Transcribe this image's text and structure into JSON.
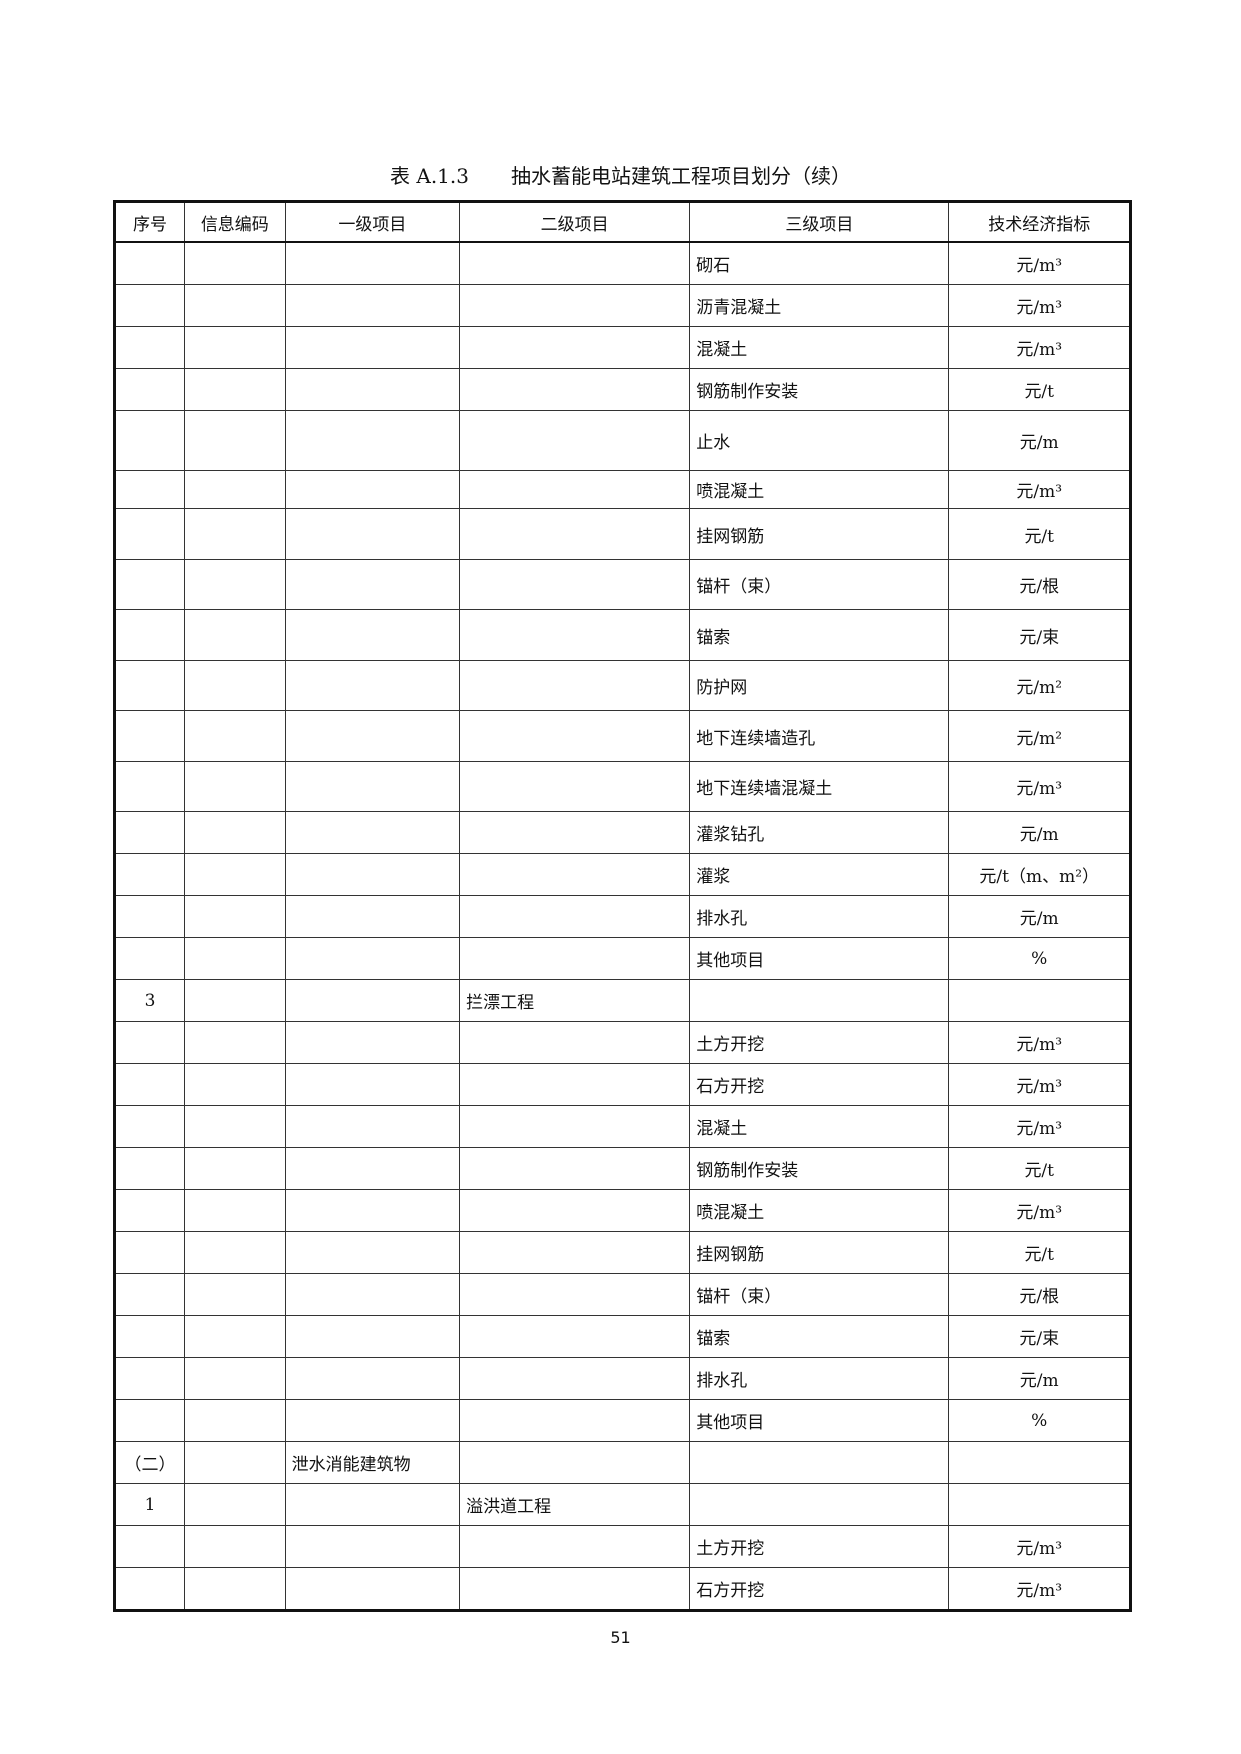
{
  "title": {
    "number": "表 A.1.3",
    "text": "抽水蓄能电站建筑工程项目划分（续）"
  },
  "columns": [
    "序号",
    "信息编码",
    "一级项目",
    "二级项目",
    "三级项目",
    "技术经济指标"
  ],
  "rows": [
    [
      "",
      "",
      "",
      "",
      "砌石",
      "元/m³"
    ],
    [
      "",
      "",
      "",
      "",
      "沥青混凝土",
      "元/m³"
    ],
    [
      "",
      "",
      "",
      "",
      "混凝土",
      "元/m³"
    ],
    [
      "",
      "",
      "",
      "",
      "钢筋制作安装",
      "元/t"
    ],
    [
      "",
      "",
      "",
      "",
      "止水",
      "元/m"
    ],
    [
      "",
      "",
      "",
      "",
      "喷混凝土",
      "元/m³"
    ],
    [
      "",
      "",
      "",
      "",
      "挂网钢筋",
      "元/t"
    ],
    [
      "",
      "",
      "",
      "",
      "锚杆（束）",
      "元/根"
    ],
    [
      "",
      "",
      "",
      "",
      "锚索",
      "元/束"
    ],
    [
      "",
      "",
      "",
      "",
      "防护网",
      "元/m²"
    ],
    [
      "",
      "",
      "",
      "",
      "地下连续墙造孔",
      "元/m²"
    ],
    [
      "",
      "",
      "",
      "",
      "地下连续墙混凝土",
      "元/m³"
    ],
    [
      "",
      "",
      "",
      "",
      "灌浆钻孔",
      "元/m"
    ],
    [
      "",
      "",
      "",
      "",
      "灌浆",
      "元/t（m、m²）"
    ],
    [
      "",
      "",
      "",
      "",
      "排水孔",
      "元/m"
    ],
    [
      "",
      "",
      "",
      "",
      "其他项目",
      "%"
    ],
    [
      "3",
      "",
      "",
      "拦漂工程",
      "",
      ""
    ],
    [
      "",
      "",
      "",
      "",
      "土方开挖",
      "元/m³"
    ],
    [
      "",
      "",
      "",
      "",
      "石方开挖",
      "元/m³"
    ],
    [
      "",
      "",
      "",
      "",
      "混凝土",
      "元/m³"
    ],
    [
      "",
      "",
      "",
      "",
      "钢筋制作安装",
      "元/t"
    ],
    [
      "",
      "",
      "",
      "",
      "喷混凝土",
      "元/m³"
    ],
    [
      "",
      "",
      "",
      "",
      "挂网钢筋",
      "元/t"
    ],
    [
      "",
      "",
      "",
      "",
      "锚杆（束）",
      "元/根"
    ],
    [
      "",
      "",
      "",
      "",
      "锚索",
      "元/束"
    ],
    [
      "",
      "",
      "",
      "",
      "排水孔",
      "元/m"
    ],
    [
      "",
      "",
      "",
      "",
      "其他项目",
      "%"
    ],
    [
      "（二）",
      "",
      "泄水消能建筑物",
      "",
      "",
      ""
    ],
    [
      "1",
      "",
      "",
      "溢洪道工程",
      "",
      ""
    ],
    [
      "",
      "",
      "",
      "",
      "土方开挖",
      "元/m³"
    ],
    [
      "",
      "",
      "",
      "",
      "石方开挖",
      "元/m³"
    ]
  ],
  "page_number": "51"
}
